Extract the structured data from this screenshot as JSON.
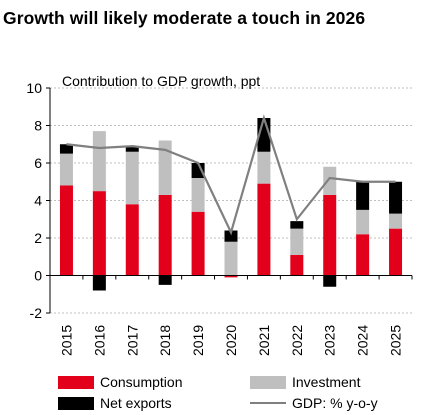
{
  "title": "Growth will likely moderate a touch in 2026",
  "colors": {
    "consumption": "#e2001a",
    "investment": "#bfbfbf",
    "net_exports": "#000000",
    "gdp": "#808080",
    "grid": "#bfbfbf"
  },
  "chart_data": {
    "type": "bar",
    "stacked": true,
    "subtitle": "Contribution to GDP growth, ppt",
    "categories": [
      "2015",
      "2016",
      "2017",
      "2018",
      "2019",
      "2020",
      "2021",
      "2022",
      "2023",
      "2024",
      "2025"
    ],
    "ylim": [
      -2,
      10
    ],
    "yticks": [
      -2,
      0,
      2,
      4,
      6,
      8,
      10
    ],
    "grid": "horizontal dashed",
    "series": [
      {
        "name": "Consumption",
        "type": "bar",
        "values": [
          4.8,
          4.5,
          3.8,
          4.3,
          3.4,
          -0.1,
          4.9,
          1.1,
          4.3,
          2.2,
          2.5
        ]
      },
      {
        "name": "Investment",
        "type": "bar",
        "values": [
          1.7,
          3.2,
          2.8,
          2.9,
          1.8,
          1.8,
          1.7,
          1.4,
          1.5,
          1.3,
          0.8
        ]
      },
      {
        "name": "Net exports",
        "type": "bar",
        "values": [
          0.5,
          -0.8,
          0.3,
          -0.5,
          0.8,
          0.6,
          1.8,
          0.4,
          -0.6,
          1.5,
          1.7
        ]
      },
      {
        "name": "GDP: % y-o-y",
        "type": "line",
        "values": [
          7.0,
          6.8,
          6.9,
          6.7,
          6.0,
          2.3,
          8.4,
          3.0,
          5.2,
          5.0,
          5.0
        ]
      }
    ],
    "legend_position": "bottom"
  }
}
